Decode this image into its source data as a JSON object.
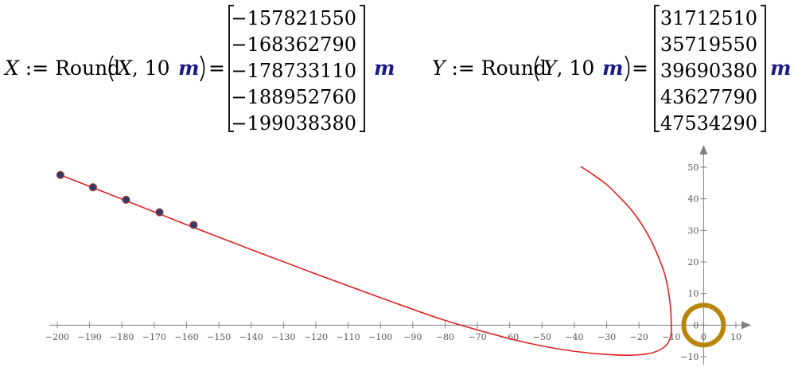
{
  "equations": [
    {
      "lhs_var": "X",
      "assign": ":=",
      "func": "Round",
      "arg_var": "X",
      "arg_num": "10",
      "unit": "m",
      "equals": "=",
      "values": [
        "−157821550",
        "−168362790",
        "−178733110",
        "−188952760",
        "−199038380"
      ]
    },
    {
      "lhs_var": "Y",
      "assign": ":=",
      "func": "Round",
      "arg_var": "Y",
      "arg_num": "10",
      "unit": "m",
      "equals": "=",
      "values": [
        "31712510",
        "35719550",
        "39690380",
        "43627790",
        "47534290"
      ]
    }
  ],
  "chart_data": {
    "type": "scatter",
    "xlim": [
      -200,
      10
    ],
    "ylim": [
      -10,
      50
    ],
    "x_ticks": [
      -200,
      -190,
      -180,
      -170,
      -160,
      -150,
      -140,
      -130,
      -120,
      -110,
      -100,
      -90,
      -80,
      -70,
      -60,
      -50,
      -40,
      -30,
      -20,
      -10,
      0,
      10
    ],
    "y_ticks": [
      -10,
      0,
      10,
      20,
      30,
      40,
      50
    ],
    "grid": false,
    "points": {
      "x": [
        -157.82,
        -168.36,
        -178.73,
        -188.95,
        -199.04
      ],
      "y": [
        31.71,
        35.72,
        39.69,
        43.63,
        47.53
      ],
      "color": "#2e3f6e",
      "edge_color": "#c0392b"
    },
    "curve": {
      "color": "#e02020",
      "x": [
        -199.04,
        -180,
        -160,
        -140,
        -120,
        -100,
        -80,
        -60,
        -50,
        -40,
        -30,
        -22,
        -16,
        -12,
        -10.3,
        -10,
        -10.5,
        -12,
        -15,
        -18,
        -22,
        -26,
        -30,
        -34,
        -38
      ],
      "y": [
        47.53,
        39.9,
        31.8,
        23.9,
        16.2,
        8.7,
        1.5,
        -4.3,
        -6.6,
        -8.3,
        -9.3,
        -9.5,
        -8.8,
        -6.8,
        -4,
        0,
        8,
        16,
        24,
        30,
        36,
        40.5,
        44.5,
        47.5,
        50.2
      ]
    },
    "marker": {
      "x": 0,
      "y": 0,
      "color": "#b8860b"
    }
  }
}
